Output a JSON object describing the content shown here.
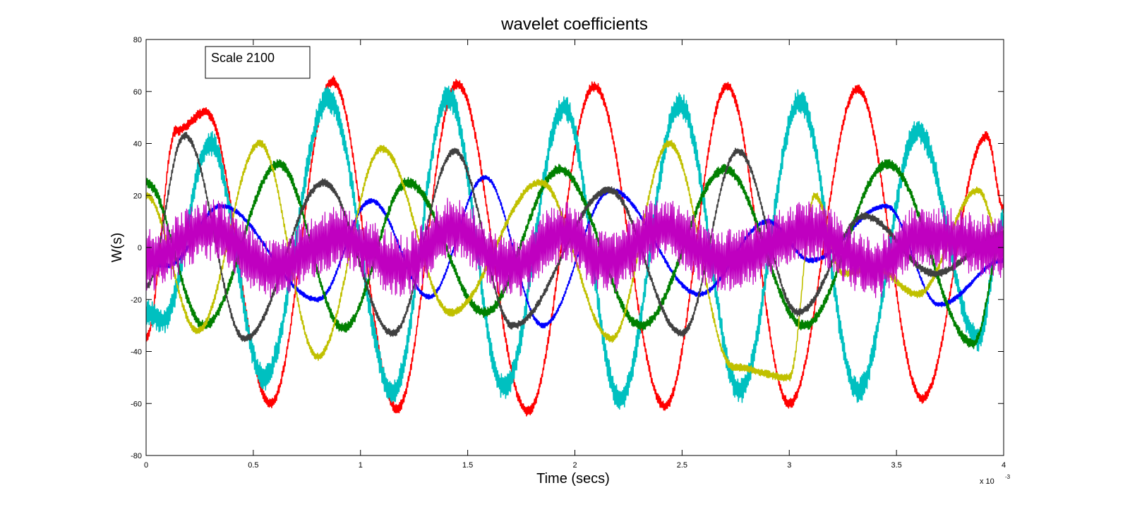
{
  "chart_data": {
    "type": "line",
    "title": "wavelet coefficients",
    "xlabel": "Time (secs)",
    "ylabel": "W(s)",
    "x_exponent_label": "x 10",
    "x_exponent_power": "-3",
    "xlim": [
      0,
      4
    ],
    "ylim": [
      -80,
      80
    ],
    "x_ticks": [
      0,
      0.5,
      1,
      1.5,
      2,
      2.5,
      3,
      3.5,
      4
    ],
    "x_tick_labels": [
      "0",
      "0.5",
      "1",
      "1.5",
      "2",
      "2.5",
      "3",
      "3.5",
      "4"
    ],
    "y_ticks": [
      -80,
      -60,
      -40,
      -20,
      0,
      20,
      40,
      60,
      80
    ],
    "y_tick_labels": [
      "-80",
      "-60",
      "-40",
      "-20",
      "0",
      "20",
      "40",
      "60",
      "80"
    ],
    "grid": false,
    "annotation": "Scale 2100",
    "annotation_placement": "top-left",
    "series": [
      {
        "name": "red",
        "color": "#ff0000",
        "noise": 2,
        "points": [
          [
            0,
            -35
          ],
          [
            0.14,
            45
          ],
          [
            0.28,
            52
          ],
          [
            0.58,
            -60
          ],
          [
            0.87,
            64
          ],
          [
            1.17,
            -62
          ],
          [
            1.45,
            63
          ],
          [
            1.78,
            -63
          ],
          [
            2.09,
            62
          ],
          [
            2.42,
            -61
          ],
          [
            2.71,
            62
          ],
          [
            3.0,
            -60
          ],
          [
            3.32,
            61
          ],
          [
            3.62,
            -58
          ],
          [
            3.92,
            43
          ],
          [
            4.0,
            15
          ]
        ]
      },
      {
        "name": "cyan",
        "color": "#00c0c0",
        "noise": 5,
        "points": [
          [
            0,
            -25
          ],
          [
            0.08,
            -28
          ],
          [
            0.3,
            40
          ],
          [
            0.55,
            -50
          ],
          [
            0.85,
            57
          ],
          [
            1.15,
            -55
          ],
          [
            1.41,
            58
          ],
          [
            1.67,
            -54
          ],
          [
            1.95,
            54
          ],
          [
            2.21,
            -58
          ],
          [
            2.49,
            55
          ],
          [
            2.77,
            -55
          ],
          [
            3.05,
            56
          ],
          [
            3.32,
            -55
          ],
          [
            3.6,
            45
          ],
          [
            3.88,
            -35
          ],
          [
            4.0,
            10
          ]
        ]
      },
      {
        "name": "blue",
        "color": "#0000ff",
        "noise": 1,
        "points": [
          [
            0,
            -6
          ],
          [
            0.1,
            -7
          ],
          [
            0.35,
            16
          ],
          [
            0.8,
            -20
          ],
          [
            1.05,
            18
          ],
          [
            1.32,
            -19
          ],
          [
            1.58,
            27
          ],
          [
            1.85,
            -30
          ],
          [
            2.17,
            22
          ],
          [
            2.58,
            -18
          ],
          [
            2.9,
            10
          ],
          [
            3.1,
            -5
          ],
          [
            3.45,
            16
          ],
          [
            3.7,
            -22
          ],
          [
            4.0,
            -5
          ]
        ]
      },
      {
        "name": "green",
        "color": "#008000",
        "noise": 2,
        "points": [
          [
            0,
            25
          ],
          [
            0.27,
            -30
          ],
          [
            0.62,
            32
          ],
          [
            0.92,
            -31
          ],
          [
            1.22,
            25
          ],
          [
            1.58,
            -25
          ],
          [
            1.93,
            30
          ],
          [
            2.31,
            -30
          ],
          [
            2.7,
            30
          ],
          [
            3.07,
            -30
          ],
          [
            3.46,
            32
          ],
          [
            3.86,
            -37
          ],
          [
            4.0,
            5
          ]
        ]
      },
      {
        "name": "yellow",
        "color": "#c0c000",
        "noise": 1.5,
        "points": [
          [
            0,
            20
          ],
          [
            0.24,
            -32
          ],
          [
            0.53,
            40
          ],
          [
            0.8,
            -42
          ],
          [
            1.1,
            38
          ],
          [
            1.42,
            -25
          ],
          [
            1.84,
            25
          ],
          [
            2.17,
            -35
          ],
          [
            2.44,
            40
          ],
          [
            2.74,
            -46
          ],
          [
            3.0,
            -50
          ],
          [
            3.12,
            20
          ],
          [
            3.25,
            -10
          ],
          [
            3.4,
            -8
          ],
          [
            3.6,
            -18
          ],
          [
            3.88,
            22
          ],
          [
            4.0,
            0
          ]
        ]
      },
      {
        "name": "dark gray",
        "color": "#404040",
        "noise": 1.5,
        "points": [
          [
            0,
            -15
          ],
          [
            0.18,
            43
          ],
          [
            0.46,
            -35
          ],
          [
            0.83,
            25
          ],
          [
            1.15,
            -33
          ],
          [
            1.44,
            37
          ],
          [
            1.71,
            -30
          ],
          [
            2.16,
            22
          ],
          [
            2.5,
            -33
          ],
          [
            2.76,
            37
          ],
          [
            3.04,
            -25
          ],
          [
            3.35,
            12
          ],
          [
            3.68,
            -10
          ],
          [
            4.0,
            5
          ]
        ]
      },
      {
        "name": "magenta",
        "color": "#c000c0",
        "noise": 12,
        "points": [
          [
            0,
            -5
          ],
          [
            0.3,
            7
          ],
          [
            0.58,
            -8
          ],
          [
            0.9,
            4
          ],
          [
            1.2,
            -7
          ],
          [
            1.43,
            8
          ],
          [
            1.7,
            -8
          ],
          [
            1.95,
            6
          ],
          [
            2.15,
            -6
          ],
          [
            2.4,
            7
          ],
          [
            2.7,
            -5
          ],
          [
            3.1,
            6
          ],
          [
            3.4,
            -8
          ],
          [
            3.6,
            5
          ],
          [
            4.0,
            0
          ]
        ]
      }
    ]
  }
}
